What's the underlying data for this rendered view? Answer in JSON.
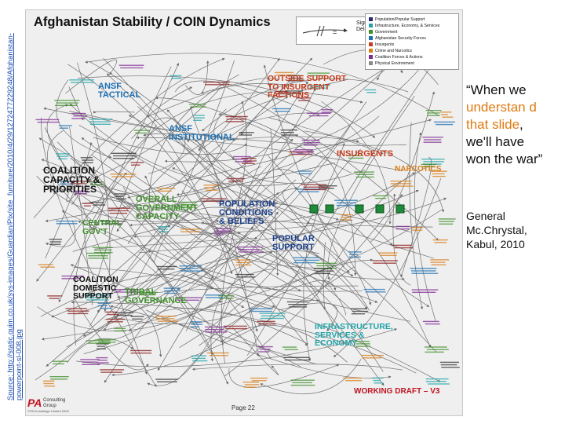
{
  "source": {
    "text": "Source: http://static.guim.co.uk/sys-images/Guardian/Pix/site_furniture/2010/4/29/1272477229248/Afghanistan-powerpoint-sl-008.jpg"
  },
  "slide": {
    "title": "Afghanistan Stability / COIN Dynamics",
    "significant_delay_label": "Significant\nDelay",
    "legend": [
      {
        "label": "Population/Popular Support",
        "color": "#2a2a6a"
      },
      {
        "label": "Infrastructure, Economy, & Services",
        "color": "#20a3a8"
      },
      {
        "label": "Government",
        "color": "#3f8f2a"
      },
      {
        "label": "Afghanistan Security Forces",
        "color": "#1b6fb3"
      },
      {
        "label": "Insurgents",
        "color": "#c63b1c"
      },
      {
        "label": "Crime and Narcotics",
        "color": "#d97d17"
      },
      {
        "label": "Coalition Forces & Actions",
        "color": "#7f2b93"
      },
      {
        "label": "Physical Environment",
        "color": "#8a8a8a"
      }
    ],
    "clusters": {
      "ansf_tactical": "ANSF\nTACTICAL",
      "outside_support": "OUTSIDE SUPPORT\nTO INSURGENT\nFACTIONS",
      "ansf_institutional": "ANSF\nINSTITUTIONAL",
      "insurgents": "INSURGENTS",
      "narcotics": "NARCOTICS",
      "coalition_capacity": "COALITION\nCAPACITY &\nPRIORITIES",
      "overall_government": "OVERALL\nGOVERNMENT\nCAPACITY",
      "central_govt": "CENTRAL\nGOV'T",
      "population_conditions": "POPULATION\nCONDITIONS\n& BELIEFS",
      "popular_support": "POPULAR\nSUPPORT",
      "coalition_domestic": "COALITION\nDOMESTIC\nSUPPORT",
      "tribal_governance": "TRIBAL\nGOVERNANCE",
      "infrastructure": "INFRASTRUCTURE,\nSERVICES &\nECONOMY"
    },
    "footer": {
      "logo_mark": "PA",
      "logo_name": "Consulting\nGroup",
      "logo_copy": "©PA Knowledge Limited 2009",
      "page": "Page 22",
      "draft": "WORKING DRAFT – V3"
    }
  },
  "quote": {
    "open": "“When we ",
    "highlight_1": "understan d that slide",
    "mid": ", we'll have won the war”"
  },
  "attribution": {
    "text": "General Mc.Chrystal, Kabul, 2010"
  },
  "colors": {
    "accent_orange": "#e07a10",
    "link_blue": "#1f4fb0",
    "draft_red": "#c1121f"
  }
}
